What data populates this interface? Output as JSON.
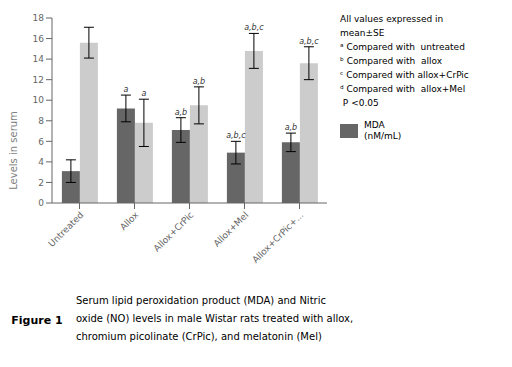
{
  "chart_data": {
    "type": "bar",
    "categories": [
      "Untreated",
      "Allox",
      "Allox+CrPic",
      "Allox+Mel",
      "Allox+CrPic+..."
    ],
    "series": [
      {
        "name": "MDA\n(nM/mL)",
        "color": "#666666",
        "values": [
          3.1,
          9.2,
          7.1,
          4.9,
          5.9
        ],
        "errors": [
          1.1,
          1.3,
          1.2,
          1.1,
          0.9
        ],
        "annotations": [
          null,
          "a",
          "a,b",
          "a,b,c",
          "a,b"
        ]
      },
      {
        "color": "#cccccc",
        "values": [
          15.6,
          7.8,
          9.5,
          14.8,
          13.6
        ],
        "errors": [
          1.5,
          2.3,
          1.8,
          1.7,
          1.6
        ],
        "annotations": [
          null,
          "a",
          "a,b",
          "a,b,c",
          "a,b,c"
        ]
      }
    ],
    "ylabel": "Levels in serum",
    "ylim": [
      0,
      18
    ],
    "yticks": [
      0,
      2,
      4,
      6,
      8,
      10,
      12,
      14,
      16,
      18
    ],
    "grid": false,
    "notes": [
      "All values expressed in",
      "mean±SE",
      "ᵃ Compared with  untreated",
      "ᵇ Compared with  allox",
      "ᶜ Compared with allox+CrPic",
      "ᵈ Compared with  allox+Mel",
      " P <0.05"
    ],
    "figure_label": "Figure 1",
    "caption": [
      "Serum lipid peroxidation product (MDA) and Nitric",
      "oxide (NO) levels in male Wistar rats treated with allox,",
      "chromium picolinate (CrPic), and melatonin (Mel)"
    ]
  }
}
